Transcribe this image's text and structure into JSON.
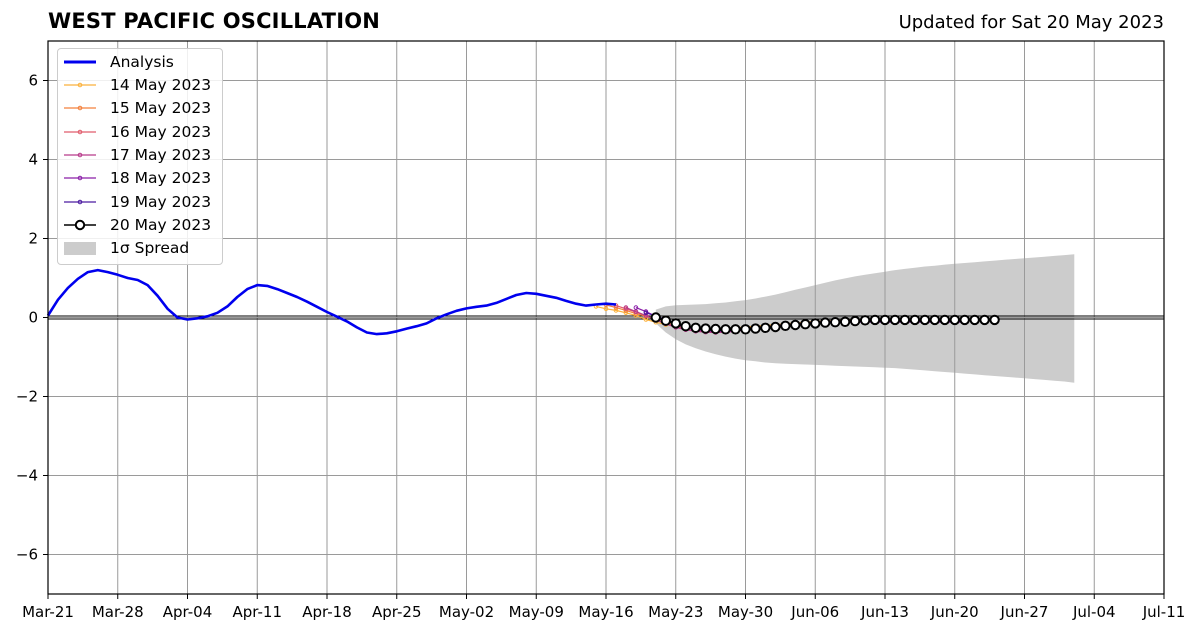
{
  "header": {
    "title": "WEST PACIFIC OSCILLATION",
    "updated": "Updated for Sat 20 May 2023"
  },
  "legend": {
    "analysis": "Analysis",
    "spread": "1σ Spread"
  },
  "colors": {
    "analysis": "#0000ee",
    "spread": "#cccccc",
    "grid": "#9a9a9a",
    "zero_line": "#000000",
    "latest_marker_fill": "#ffffff",
    "latest_marker_edge": "#000000"
  },
  "chart_data": {
    "type": "line",
    "title": "WEST PACIFIC OSCILLATION",
    "subtitle": "Updated for Sat 20 May 2023",
    "x_type": "date",
    "x_range": [
      "2023-03-21",
      "2023-07-11"
    ],
    "ylim": [
      -7,
      7
    ],
    "x_ticks": [
      "Mar-21",
      "Mar-28",
      "Apr-04",
      "Apr-11",
      "Apr-18",
      "Apr-25",
      "May-02",
      "May-09",
      "May-16",
      "May-23",
      "May-30",
      "Jun-06",
      "Jun-13",
      "Jun-20",
      "Jun-27",
      "Jul-04",
      "Jul-11"
    ],
    "y_ticks": [
      -6,
      -4,
      -2,
      0,
      2,
      4,
      6
    ],
    "y_tick_labels": [
      "−6",
      "−4",
      "−2",
      "0",
      "2",
      "4",
      "6"
    ],
    "grid": true,
    "legend_position": "top-left",
    "analysis": {
      "name": "Analysis",
      "color": "#0000ee",
      "start": "2023-03-21",
      "values": [
        0.05,
        0.45,
        0.75,
        0.98,
        1.15,
        1.2,
        1.15,
        1.08,
        1.0,
        0.95,
        0.82,
        0.55,
        0.22,
        0.0,
        -0.05,
        -0.02,
        0.03,
        0.12,
        0.28,
        0.52,
        0.72,
        0.82,
        0.8,
        0.72,
        0.62,
        0.52,
        0.4,
        0.27,
        0.14,
        0.02,
        -0.1,
        -0.25,
        -0.38,
        -0.42,
        -0.4,
        -0.35,
        -0.28,
        -0.22,
        -0.15,
        -0.02,
        0.08,
        0.17,
        0.23,
        0.27,
        0.3,
        0.37,
        0.47,
        0.57,
        0.62,
        0.6,
        0.55,
        0.5,
        0.42,
        0.35,
        0.3,
        0.33,
        0.35,
        0.33
      ]
    },
    "forecasts": [
      {
        "name": "14 May 2023",
        "color": "#fbb13c",
        "start": "2023-05-15",
        "values": [
          0.28,
          0.22,
          0.18,
          0.12,
          0.05,
          -0.05,
          -0.12,
          -0.18,
          -0.22,
          -0.25,
          -0.27,
          -0.28,
          -0.28,
          -0.27,
          -0.26,
          -0.24,
          -0.22,
          -0.2,
          -0.18,
          -0.16,
          -0.14,
          -0.12,
          -0.1,
          -0.09,
          -0.08,
          -0.07,
          -0.06,
          -0.06,
          -0.05,
          -0.05,
          -0.05,
          -0.05,
          -0.05,
          -0.05,
          -0.06,
          -0.06,
          -0.06,
          -0.06
        ]
      },
      {
        "name": "15 May 2023",
        "color": "#f3803c",
        "start": "2023-05-16",
        "values": [
          0.32,
          0.25,
          0.18,
          0.1,
          0.03,
          -0.05,
          -0.13,
          -0.2,
          -0.25,
          -0.28,
          -0.3,
          -0.31,
          -0.3,
          -0.29,
          -0.27,
          -0.25,
          -0.23,
          -0.2,
          -0.18,
          -0.16,
          -0.14,
          -0.12,
          -0.1,
          -0.09,
          -0.08,
          -0.08,
          -0.07,
          -0.07,
          -0.07,
          -0.07,
          -0.07,
          -0.07,
          -0.07,
          -0.07,
          -0.07,
          -0.07,
          -0.07
        ]
      },
      {
        "name": "16 May 2023",
        "color": "#e05c6c",
        "start": "2023-05-17",
        "values": [
          0.3,
          0.22,
          0.14,
          0.05,
          -0.05,
          -0.15,
          -0.23,
          -0.3,
          -0.34,
          -0.36,
          -0.37,
          -0.36,
          -0.34,
          -0.31,
          -0.28,
          -0.25,
          -0.22,
          -0.19,
          -0.17,
          -0.15,
          -0.13,
          -0.12,
          -0.11,
          -0.1,
          -0.1,
          -0.1,
          -0.1,
          -0.1,
          -0.1,
          -0.1,
          -0.1,
          -0.1,
          -0.1,
          -0.1,
          -0.1,
          -0.1
        ]
      },
      {
        "name": "17 May 2023",
        "color": "#b83a8a",
        "start": "2023-05-18",
        "values": [
          0.25,
          0.15,
          0.05,
          -0.06,
          -0.16,
          -0.25,
          -0.31,
          -0.35,
          -0.37,
          -0.38,
          -0.37,
          -0.35,
          -0.32,
          -0.29,
          -0.26,
          -0.23,
          -0.2,
          -0.18,
          -0.16,
          -0.14,
          -0.13,
          -0.12,
          -0.12,
          -0.11,
          -0.11,
          -0.11,
          -0.11,
          -0.11,
          -0.11,
          -0.11,
          -0.11,
          -0.11,
          -0.11,
          -0.11,
          -0.11
        ]
      },
      {
        "name": "18 May 2023",
        "color": "#8a1fa8",
        "start": "2023-05-19",
        "values": [
          0.25,
          0.15,
          0.03,
          -0.08,
          -0.18,
          -0.26,
          -0.31,
          -0.34,
          -0.35,
          -0.35,
          -0.34,
          -0.32,
          -0.29,
          -0.26,
          -0.23,
          -0.21,
          -0.19,
          -0.17,
          -0.15,
          -0.14,
          -0.13,
          -0.12,
          -0.12,
          -0.12,
          -0.12,
          -0.12,
          -0.12,
          -0.12,
          -0.12,
          -0.12,
          -0.12,
          -0.12,
          -0.12,
          -0.12
        ]
      },
      {
        "name": "19 May 2023",
        "color": "#4b1aa0",
        "start": "2023-05-20",
        "values": [
          0.12,
          0.04,
          -0.06,
          -0.16,
          -0.23,
          -0.28,
          -0.31,
          -0.33,
          -0.33,
          -0.32,
          -0.3,
          -0.27,
          -0.24,
          -0.21,
          -0.18,
          -0.16,
          -0.14,
          -0.12,
          -0.11,
          -0.1,
          -0.1,
          -0.09,
          -0.09,
          -0.09,
          -0.09,
          -0.09,
          -0.09,
          -0.09,
          -0.09,
          -0.09,
          -0.09,
          -0.09,
          -0.09
        ]
      }
    ],
    "latest": {
      "name": "20 May 2023",
      "color": "#000000",
      "start": "2023-05-21",
      "values": [
        0.0,
        -0.08,
        -0.15,
        -0.22,
        -0.26,
        -0.28,
        -0.29,
        -0.3,
        -0.3,
        -0.3,
        -0.28,
        -0.26,
        -0.24,
        -0.21,
        -0.19,
        -0.17,
        -0.15,
        -0.13,
        -0.12,
        -0.11,
        -0.09,
        -0.07,
        -0.06,
        -0.06,
        -0.06,
        -0.06,
        -0.06,
        -0.06,
        -0.06,
        -0.06,
        -0.06,
        -0.06,
        -0.06,
        -0.06,
        -0.06
      ]
    },
    "spread": {
      "name": "1σ Spread",
      "color": "#cccccc",
      "start": "2023-05-21",
      "upper": [
        0.2,
        0.28,
        0.31,
        0.32,
        0.33,
        0.34,
        0.36,
        0.38,
        0.41,
        0.44,
        0.48,
        0.53,
        0.58,
        0.64,
        0.7,
        0.76,
        0.82,
        0.88,
        0.94,
        0.99,
        1.04,
        1.08,
        1.12,
        1.16,
        1.2,
        1.23,
        1.26,
        1.29,
        1.31,
        1.34,
        1.36,
        1.38,
        1.4,
        1.42,
        1.44,
        1.46,
        1.48,
        1.5,
        1.52,
        1.54,
        1.56,
        1.58,
        1.6
      ],
      "lower": [
        -0.15,
        -0.38,
        -0.55,
        -0.68,
        -0.78,
        -0.86,
        -0.93,
        -0.99,
        -1.04,
        -1.08,
        -1.11,
        -1.14,
        -1.16,
        -1.17,
        -1.18,
        -1.19,
        -1.2,
        -1.21,
        -1.22,
        -1.23,
        -1.24,
        -1.25,
        -1.26,
        -1.27,
        -1.28,
        -1.3,
        -1.32,
        -1.34,
        -1.36,
        -1.38,
        -1.4,
        -1.42,
        -1.44,
        -1.46,
        -1.48,
        -1.5,
        -1.52,
        -1.54,
        -1.56,
        -1.58,
        -1.6,
        -1.62,
        -1.65
      ]
    }
  }
}
